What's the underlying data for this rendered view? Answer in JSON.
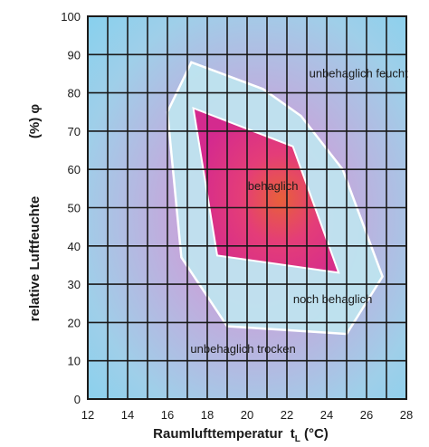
{
  "chart_data": {
    "type": "area",
    "xlabel": "Raumlufttemperatur",
    "xlabel_sub": "L",
    "xlabel_unit": " (°C)",
    "xlabel_symbol": "t",
    "ylabel": "relative Luftfeuchte",
    "ylabel_unit": "(%) φ",
    "xlim": [
      12,
      28
    ],
    "ylim": [
      0,
      100
    ],
    "x_ticks": [
      12,
      14,
      16,
      18,
      20,
      22,
      24,
      26,
      28
    ],
    "y_ticks": [
      0,
      10,
      20,
      30,
      40,
      50,
      60,
      70,
      80,
      90,
      100
    ],
    "grid": true,
    "regions": [
      {
        "name": "noch behaglich",
        "fill": "#bfe6ef",
        "stroke": "#ffffff",
        "points": [
          [
            17.2,
            88
          ],
          [
            20.8,
            81
          ],
          [
            22.7,
            74
          ],
          [
            24.8,
            60
          ],
          [
            26.8,
            32
          ],
          [
            25,
            17
          ],
          [
            19,
            19
          ],
          [
            16.7,
            37
          ],
          [
            16,
            75
          ]
        ]
      },
      {
        "name": "behaglich",
        "fill": "#e0347e",
        "stroke": "#ffffff",
        "points": [
          [
            17.3,
            76
          ],
          [
            22.3,
            66
          ],
          [
            24.6,
            33
          ],
          [
            18.5,
            37.5
          ]
        ]
      }
    ],
    "labels": [
      {
        "text": "unbehaglich feucht",
        "x": 25.6,
        "y": 85
      },
      {
        "text": "behaglich",
        "x": 21.3,
        "y": 55.5
      },
      {
        "text": "noch behaglich",
        "x": 24.3,
        "y": 26
      },
      {
        "text": "unbehaglich trocken",
        "x": 19.8,
        "y": 13
      }
    ],
    "colors": {
      "plot_background": "#8ad2ec",
      "background_glow": "#cf9fd3",
      "grid": "#1a1a1a"
    }
  }
}
